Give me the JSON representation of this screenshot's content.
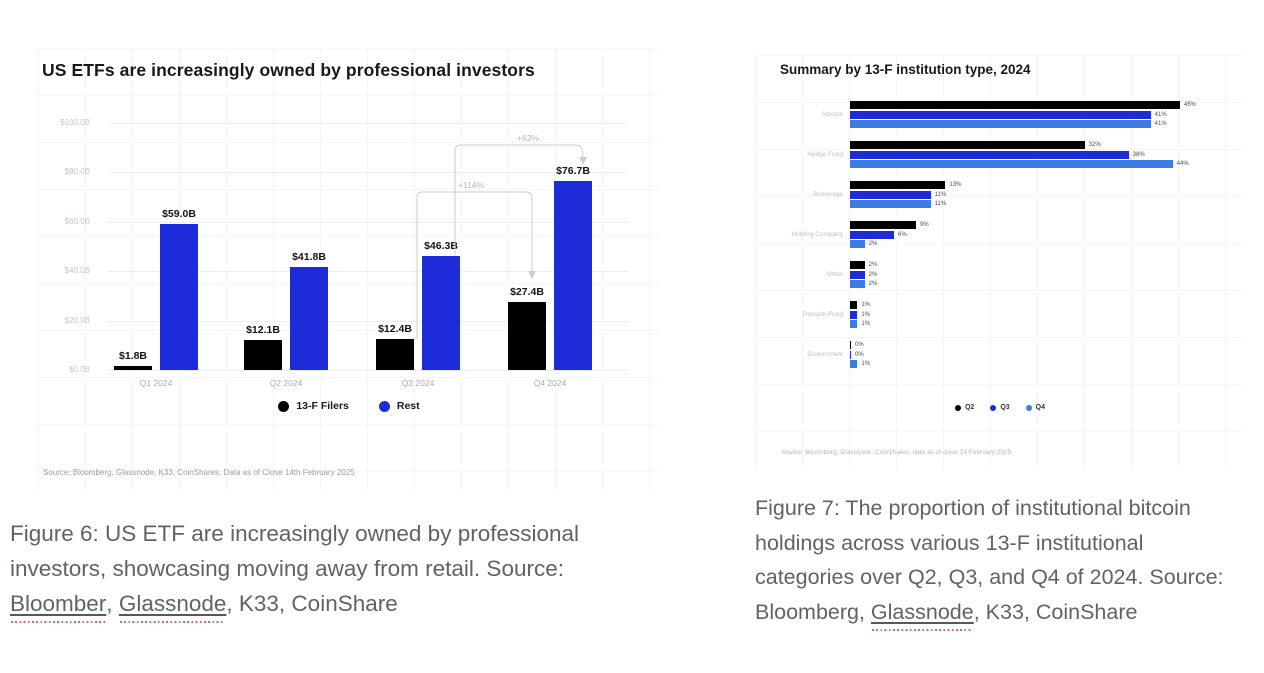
{
  "chart_data": [
    {
      "type": "bar",
      "title": "US ETFs are increasingly owned by professional investors",
      "categories": [
        "Q1 2024",
        "Q2 2024",
        "Q3 2024",
        "Q4 2024"
      ],
      "series": [
        {
          "name": "13-F Filers",
          "color": "#000000",
          "values": [
            1.8,
            12.1,
            12.4,
            27.4
          ],
          "labels": [
            "$1.8B",
            "$12.1B",
            "$12.4B",
            "$27.4B"
          ]
        },
        {
          "name": "Rest",
          "color": "#1d2bd8",
          "values": [
            59.0,
            41.8,
            46.3,
            76.7
          ],
          "labels": [
            "$59.0B",
            "$41.8B",
            "$46.3B",
            "$76.7B"
          ]
        }
      ],
      "ylabel": "",
      "xlabel": "",
      "ylim": [
        0,
        100
      ],
      "y_ticks": [
        "$100.0B",
        "$80.0B",
        "$60.0B",
        "$40.0B",
        "$20.0B",
        "$0.0B"
      ],
      "legend_position": "bottom",
      "grid": true,
      "annotations": {
        "a114": "+114%",
        "a62": "+62%"
      },
      "source": "Source: Bloomberg, Glassnode, K33, CoinShares. Data as of Close 14th February 2025"
    },
    {
      "type": "bar-horizontal",
      "title": "Summary by 13-F institution type, 2024",
      "categories": [
        "Advisor",
        "Hedge Fund",
        "Brokerage",
        "Holding Company",
        "Other",
        "Pension Fund",
        "Government"
      ],
      "series": [
        {
          "name": "Q2",
          "color": "#000000",
          "values": [
            45,
            32,
            13,
            9,
            2,
            1,
            0
          ],
          "labels": [
            "45%",
            "32%",
            "13%",
            "9%",
            "2%",
            "1%",
            "0%"
          ]
        },
        {
          "name": "Q3",
          "color": "#1d2bd8",
          "values": [
            41,
            38,
            11,
            6,
            2,
            1,
            0
          ],
          "labels": [
            "41%",
            "38%",
            "11%",
            "6%",
            "2%",
            "1%",
            "0%"
          ]
        },
        {
          "name": "Q4",
          "color": "#3c7de2",
          "values": [
            41,
            44,
            11,
            2,
            2,
            1,
            1
          ],
          "labels": [
            "41%",
            "44%",
            "11%",
            "2%",
            "2%",
            "1%",
            "1%"
          ]
        }
      ],
      "xlim": [
        0,
        45
      ],
      "legend_position": "bottom",
      "grid": false,
      "source": "Source: Bloomberg, Glassnode, CoinShares, data as of close 14 February 2025"
    }
  ],
  "captions": {
    "fig6": [
      {
        "text": "Figure 6: US ETF are increasingly owned by professional investors, showcasing moving away from retail. Source: ",
        "link": false
      },
      {
        "text": "Bloomber",
        "link": true
      },
      {
        "text": ", ",
        "link": false
      },
      {
        "text": "Glassnode",
        "link": true
      },
      {
        "text": ", K33, CoinShare",
        "link": false
      }
    ],
    "fig7": [
      {
        "text": "Figure 7: The proportion of institutional bitcoin holdings across various 13-F institutional categories over Q2, Q3, and Q4 of 2024. Source: Bloomberg, ",
        "link": false
      },
      {
        "text": "Glassnode",
        "link": true
      },
      {
        "text": ", K33, CoinShare",
        "link": false
      }
    ]
  }
}
